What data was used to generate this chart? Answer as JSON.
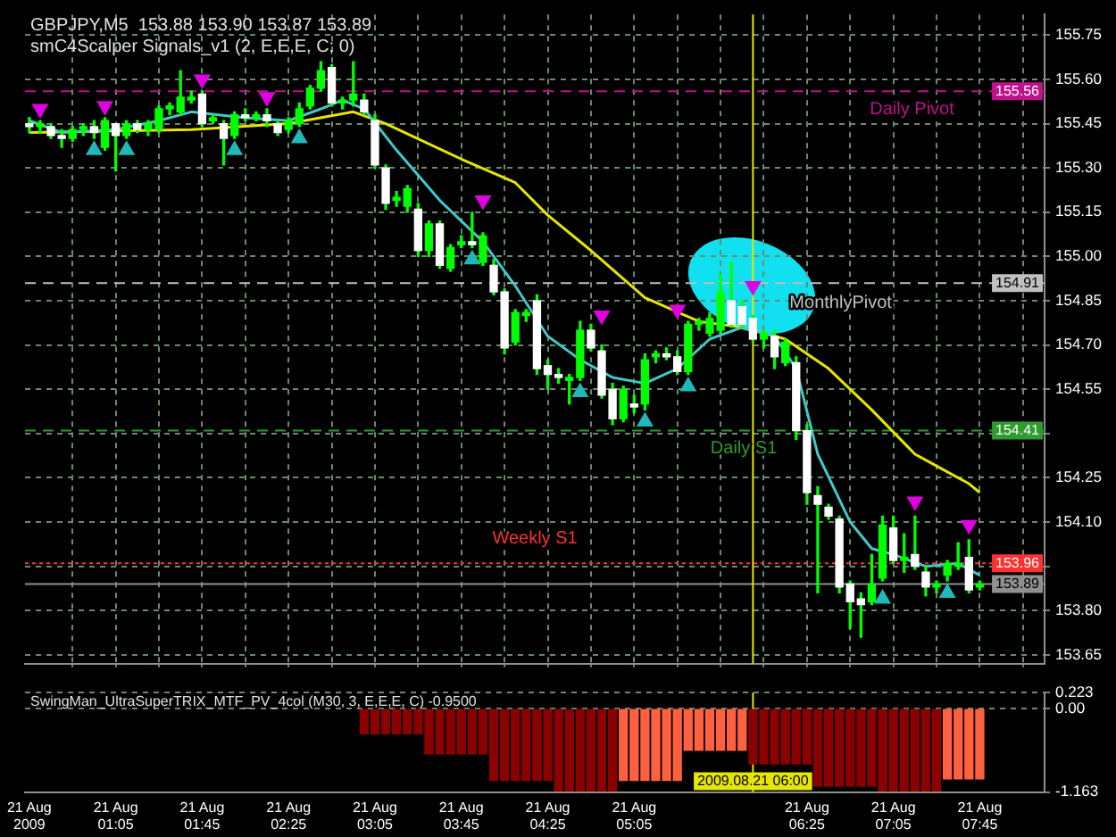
{
  "chart_data": [
    {
      "type": "candlestick",
      "title": "GBPJPY,M5  153.88 153.90 153.87 153.89",
      "subtitle": "smC4Scalper Signals_v1 (2, E,E,E, C; 0)",
      "series": [
        {
          "type": "line",
          "color": "#40c8c8",
          "x": [
            "2009-08-21T00:25",
            "2009-08-21T00:40",
            "2009-08-21T01:05",
            "2009-08-21T01:25",
            "2009-08-21T01:40",
            "2009-08-21T02:05",
            "2009-08-21T02:25",
            "2009-08-21T02:40",
            "2009-08-21T02:50",
            "2009-08-21T03:00",
            "2009-08-21T03:15",
            "2009-08-21T03:35",
            "2009-08-21T03:55",
            "2009-08-21T04:10",
            "2009-08-21T04:25",
            "2009-08-21T04:40",
            "2009-08-21T04:55",
            "2009-08-21T05:10",
            "2009-08-21T05:25",
            "2009-08-21T05:40",
            "2009-08-21T05:55",
            "2009-08-21T06:10",
            "2009-08-21T06:20",
            "2009-08-21T06:30",
            "2009-08-21T06:45",
            "2009-08-21T06:55",
            "2009-08-21T07:05",
            "2009-08-21T07:20",
            "2009-08-21T07:35",
            "2009-08-21T07:45"
          ],
          "values": [
            155.46,
            155.42,
            155.43,
            155.46,
            155.49,
            155.47,
            155.46,
            155.5,
            155.53,
            155.5,
            155.36,
            155.19,
            155.05,
            154.9,
            154.73,
            154.65,
            154.59,
            154.57,
            154.62,
            154.72,
            154.76,
            154.73,
            154.62,
            154.33,
            154.1,
            154.01,
            153.99,
            153.95,
            153.96,
            153.92
          ]
        },
        {
          "type": "line",
          "color": "#e6e600",
          "x": [
            "2009-08-21T00:25",
            "2009-08-21T01:40",
            "2009-08-21T02:25",
            "2009-08-21T02:55",
            "2009-08-21T03:10",
            "2009-08-21T03:45",
            "2009-08-21T04:10",
            "2009-08-21T04:25",
            "2009-08-21T04:45",
            "2009-08-21T05:10",
            "2009-08-21T05:35",
            "2009-08-21T05:55",
            "2009-08-21T06:15",
            "2009-08-21T06:35",
            "2009-08-21T06:55",
            "2009-08-21T07:15",
            "2009-08-21T07:30",
            "2009-08-21T07:40",
            "2009-08-21T07:45"
          ],
          "values": [
            155.42,
            155.43,
            155.45,
            155.49,
            155.45,
            155.33,
            155.25,
            155.14,
            155.02,
            154.86,
            154.78,
            154.76,
            154.72,
            154.62,
            154.48,
            154.33,
            154.27,
            154.23,
            154.2
          ]
        },
        {
          "type": "scatter",
          "color": "#e000e0",
          "marker": "triangle-down",
          "x": [
            "2009-08-21T00:30",
            "2009-08-21T01:00",
            "2009-08-21T01:45",
            "2009-08-21T02:15",
            "2009-08-21T03:55",
            "2009-08-21T04:50",
            "2009-08-21T05:25",
            "2009-08-21T06:00",
            "2009-08-21T07:15",
            "2009-08-21T07:40"
          ],
          "values": [
            155.5,
            155.51,
            155.6,
            155.54,
            155.19,
            154.8,
            154.82,
            154.9,
            154.17,
            154.09
          ]
        },
        {
          "type": "scatter",
          "color": "#20b8b8",
          "marker": "triangle",
          "x": [
            "2009-08-21T00:55",
            "2009-08-21T01:10",
            "2009-08-21T02:00",
            "2009-08-21T02:30",
            "2009-08-21T03:50",
            "2009-08-21T04:40",
            "2009-08-21T05:10",
            "2009-08-21T05:30",
            "2009-08-21T07:00",
            "2009-08-21T07:30"
          ],
          "values": [
            155.36,
            155.36,
            155.36,
            155.4,
            154.99,
            154.54,
            154.44,
            154.56,
            153.84,
            153.86
          ]
        },
        {
          "type": "candlestick",
          "color": "#00ff00",
          "colors": [
            "#ffffff",
            "#00ff00",
            "#ffffff",
            "#ffffff",
            "#00ff00",
            "#00ff00",
            "#ffffff",
            "#00ff00",
            "#ffffff",
            "#00ff00",
            "#ffffff",
            "#00ff00",
            "#00ff00",
            "#00ff00",
            "#00ff00",
            "#00ff00",
            "#ffffff",
            "#00ff00",
            "#ffffff",
            "#00ff00",
            "#ffffff",
            "#00ff00",
            "#ffffff",
            "#ffffff",
            "#00ff00",
            "#00ff00",
            "#00ff00",
            "#00ff00",
            "#ffffff",
            "#00ff00",
            "#00ff00",
            "#ffffff",
            "#ffffff",
            "#ffffff",
            "#00ff00",
            "#00ff00",
            "#ffffff",
            "#00ff00",
            "#ffffff",
            "#00ff00",
            "#00ff00",
            "#ffffff",
            "#00ff00",
            "#ffffff",
            "#ffffff",
            "#00ff00",
            "#00ff00",
            "#ffffff",
            "#ffffff",
            "#ffffff",
            "#00ff00",
            "#00ff00",
            "#ffffff",
            "#ffffff",
            "#ffffff",
            "#00ff00",
            "#ffffff",
            "#00ff00",
            "#00ff00",
            "#ffffff",
            "#ffffff",
            "#00ff00",
            "#00ff00",
            "#00ff00",
            "#00ff00",
            "#ffffff",
            "#ffffff",
            "#ffffff",
            "#00ff00",
            "#ffffff",
            "#00ff00",
            "#ffffff",
            "#ffffff",
            "#ffffff",
            "#ffffff",
            "#ffffff",
            "#ffffff",
            "#ffffff",
            "#00ff00",
            "#00ff00",
            "#ffffff",
            "#00ff00",
            "#ffffff",
            "#ffffff",
            "#00ff00",
            "#00ff00",
            "#00ff00",
            "#ffffff",
            "#00ff00"
          ],
          "x": [
            "2009-08-21T00:25",
            "2009-08-21T00:30",
            "2009-08-21T00:35",
            "2009-08-21T00:40",
            "2009-08-21T00:45",
            "2009-08-21T00:50",
            "2009-08-21T00:55",
            "2009-08-21T01:00",
            "2009-08-21T01:05",
            "2009-08-21T01:10",
            "2009-08-21T01:15",
            "2009-08-21T01:20",
            "2009-08-21T01:25",
            "2009-08-21T01:30",
            "2009-08-21T01:35",
            "2009-08-21T01:40",
            "2009-08-21T01:45",
            "2009-08-21T01:50",
            "2009-08-21T01:55",
            "2009-08-21T02:00",
            "2009-08-21T02:05",
            "2009-08-21T02:10",
            "2009-08-21T02:15",
            "2009-08-21T02:20",
            "2009-08-21T02:25",
            "2009-08-21T02:30",
            "2009-08-21T02:35",
            "2009-08-21T02:40",
            "2009-08-21T02:45",
            "2009-08-21T02:50",
            "2009-08-21T02:55",
            "2009-08-21T03:00",
            "2009-08-21T03:05",
            "2009-08-21T03:10",
            "2009-08-21T03:15",
            "2009-08-21T03:20",
            "2009-08-21T03:25",
            "2009-08-21T03:30",
            "2009-08-21T03:35",
            "2009-08-21T03:40",
            "2009-08-21T03:45",
            "2009-08-21T03:50",
            "2009-08-21T03:55",
            "2009-08-21T04:00",
            "2009-08-21T04:05",
            "2009-08-21T04:10",
            "2009-08-21T04:15",
            "2009-08-21T04:20",
            "2009-08-21T04:25",
            "2009-08-21T04:30",
            "2009-08-21T04:35",
            "2009-08-21T04:40",
            "2009-08-21T04:45",
            "2009-08-21T04:50",
            "2009-08-21T04:55",
            "2009-08-21T05:00",
            "2009-08-21T05:05",
            "2009-08-21T05:10",
            "2009-08-21T05:15",
            "2009-08-21T05:20",
            "2009-08-21T05:25",
            "2009-08-21T05:30",
            "2009-08-21T05:35",
            "2009-08-21T05:40",
            "2009-08-21T05:45",
            "2009-08-21T05:50",
            "2009-08-21T05:55",
            "2009-08-21T06:00",
            "2009-08-21T06:05",
            "2009-08-21T06:10",
            "2009-08-21T06:15",
            "2009-08-21T06:20",
            "2009-08-21T06:25",
            "2009-08-21T06:30",
            "2009-08-21T06:35",
            "2009-08-21T06:40",
            "2009-08-21T06:45",
            "2009-08-21T06:50",
            "2009-08-21T06:55",
            "2009-08-21T07:00",
            "2009-08-21T07:05",
            "2009-08-21T07:10",
            "2009-08-21T07:15",
            "2009-08-21T07:20",
            "2009-08-21T07:25",
            "2009-08-21T07:30",
            "2009-08-21T07:35",
            "2009-08-21T07:40",
            "2009-08-21T07:45"
          ],
          "ohlc": [
            [
              155.45,
              155.47,
              155.42,
              155.44
            ],
            [
              155.44,
              155.46,
              155.42,
              155.45
            ],
            [
              155.44,
              155.45,
              155.4,
              155.41
            ],
            [
              155.41,
              155.43,
              155.37,
              155.4
            ],
            [
              155.4,
              155.44,
              155.39,
              155.43
            ],
            [
              155.43,
              155.45,
              155.41,
              155.44
            ],
            [
              155.44,
              155.46,
              155.4,
              155.42
            ],
            [
              155.37,
              155.47,
              155.36,
              155.46
            ],
            [
              155.45,
              155.45,
              155.29,
              155.41
            ],
            [
              155.41,
              155.46,
              155.4,
              155.45
            ],
            [
              155.45,
              155.46,
              155.42,
              155.43
            ],
            [
              155.43,
              155.46,
              155.41,
              155.45
            ],
            [
              155.43,
              155.51,
              155.42,
              155.5
            ],
            [
              155.5,
              155.52,
              155.48,
              155.51
            ],
            [
              155.49,
              155.63,
              155.48,
              155.54
            ],
            [
              155.53,
              155.56,
              155.52,
              155.54
            ],
            [
              155.55,
              155.56,
              155.44,
              155.45
            ],
            [
              155.46,
              155.48,
              155.45,
              155.47
            ],
            [
              155.45,
              155.46,
              155.31,
              155.4
            ],
            [
              155.41,
              155.49,
              155.4,
              155.48
            ],
            [
              155.48,
              155.5,
              155.46,
              155.47
            ],
            [
              155.47,
              155.49,
              155.46,
              155.48
            ],
            [
              155.48,
              155.5,
              155.44,
              155.46
            ],
            [
              155.45,
              155.46,
              155.41,
              155.42
            ],
            [
              155.43,
              155.47,
              155.42,
              155.46
            ],
            [
              155.45,
              155.52,
              155.44,
              155.5
            ],
            [
              155.51,
              155.58,
              155.5,
              155.57
            ],
            [
              155.57,
              155.66,
              155.56,
              155.63
            ],
            [
              155.64,
              155.65,
              155.51,
              155.52
            ],
            [
              155.52,
              155.54,
              155.5,
              155.53
            ],
            [
              155.53,
              155.66,
              155.51,
              155.55
            ],
            [
              155.53,
              155.55,
              155.48,
              155.49
            ],
            [
              155.46,
              155.48,
              155.3,
              155.31
            ],
            [
              155.3,
              155.31,
              155.16,
              155.18
            ],
            [
              155.19,
              155.22,
              155.17,
              155.2
            ],
            [
              155.17,
              155.24,
              155.15,
              155.23
            ],
            [
              155.16,
              155.18,
              155,
              155.02
            ],
            [
              155.02,
              155.12,
              155,
              155.11
            ],
            [
              155.11,
              155.12,
              154.96,
              154.97
            ],
            [
              154.96,
              155.04,
              154.95,
              155.03
            ],
            [
              155.04,
              155.07,
              155.03,
              155.05
            ],
            [
              155.05,
              155.15,
              155.03,
              155.04
            ],
            [
              154.98,
              155.08,
              154.97,
              155.07
            ],
            [
              154.97,
              154.99,
              154.87,
              154.88
            ],
            [
              154.88,
              154.89,
              154.67,
              154.69
            ],
            [
              154.71,
              154.82,
              154.7,
              154.81
            ],
            [
              154.8,
              154.82,
              154.78,
              154.81
            ],
            [
              154.85,
              154.87,
              154.6,
              154.62
            ],
            [
              154.63,
              154.65,
              154.55,
              154.6
            ],
            [
              154.6,
              154.62,
              154.57,
              154.59
            ],
            [
              154.58,
              154.6,
              154.5,
              154.59
            ],
            [
              154.59,
              154.78,
              154.58,
              154.75
            ],
            [
              154.75,
              154.77,
              154.68,
              154.69
            ],
            [
              154.68,
              154.7,
              154.52,
              154.53
            ],
            [
              154.55,
              154.57,
              154.43,
              154.45
            ],
            [
              154.45,
              154.56,
              154.44,
              154.55
            ],
            [
              154.5,
              154.53,
              154.47,
              154.49
            ],
            [
              154.5,
              154.67,
              154.48,
              154.65
            ],
            [
              154.66,
              154.68,
              154.64,
              154.67
            ],
            [
              154.67,
              154.69,
              154.65,
              154.66
            ],
            [
              154.66,
              154.68,
              154.6,
              154.61
            ],
            [
              154.61,
              154.78,
              154.6,
              154.77
            ],
            [
              154.77,
              154.79,
              154.75,
              154.78
            ],
            [
              154.74,
              154.81,
              154.73,
              154.79
            ],
            [
              154.75,
              154.94,
              154.74,
              154.88
            ],
            [
              154.85,
              154.98,
              154.76,
              154.77
            ],
            [
              154.83,
              154.85,
              154.76,
              154.77
            ],
            [
              154.79,
              154.8,
              154.71,
              154.72
            ],
            [
              154.72,
              154.75,
              154.69,
              154.74
            ],
            [
              154.73,
              154.75,
              154.62,
              154.66
            ],
            [
              154.64,
              154.72,
              154.63,
              154.71
            ],
            [
              154.64,
              154.66,
              154.38,
              154.41
            ],
            [
              154.41,
              154.43,
              154.16,
              154.2
            ],
            [
              154.19,
              154.22,
              153.86,
              154.16
            ],
            [
              154.15,
              154.16,
              154.11,
              154.12
            ],
            [
              154.11,
              154.12,
              153.86,
              153.88
            ],
            [
              153.89,
              153.9,
              153.74,
              153.83
            ],
            [
              153.84,
              153.86,
              153.71,
              153.82
            ],
            [
              153.83,
              153.99,
              153.82,
              153.89
            ],
            [
              153.91,
              154.12,
              153.9,
              154.09
            ],
            [
              154.08,
              154.12,
              153.96,
              153.97
            ],
            [
              153.97,
              154.06,
              153.93,
              153.98
            ],
            [
              153.99,
              154.12,
              153.94,
              153.95
            ],
            [
              153.93,
              153.95,
              153.85,
              153.88
            ],
            [
              153.88,
              153.9,
              153.86,
              153.89
            ],
            [
              153.92,
              153.97,
              153.9,
              153.96
            ],
            [
              153.95,
              154.03,
              153.94,
              153.96
            ],
            [
              153.98,
              154.04,
              153.86,
              153.87
            ],
            [
              153.88,
              153.9,
              153.87,
              153.89
            ]
          ]
        }
      ],
      "xlim": [
        "2009-08-21T00:23",
        "2009-08-21T08:15"
      ],
      "ylim": [
        153.62,
        155.82
      ],
      "xticks": [
        {
          "value": "2009-08-21T00:45",
          "label": null
        },
        {
          "value": "2009-08-21T01:05",
          "label": null
        },
        {
          "value": "2009-08-21T01:25",
          "label": null
        },
        {
          "value": "2009-08-21T01:45",
          "label": null
        },
        {
          "value": "2009-08-21T02:05",
          "label": null
        },
        {
          "value": "2009-08-21T02:25",
          "label": null
        },
        {
          "value": "2009-08-21T02:45",
          "label": null
        },
        {
          "value": "2009-08-21T03:05",
          "label": null
        },
        {
          "value": "2009-08-21T03:25",
          "label": null
        },
        {
          "value": "2009-08-21T03:45",
          "label": null
        },
        {
          "value": "2009-08-21T04:05",
          "label": null
        },
        {
          "value": "2009-08-21T04:25",
          "label": null
        },
        {
          "value": "2009-08-21T04:45",
          "label": null
        },
        {
          "value": "2009-08-21T05:05",
          "label": null
        },
        {
          "value": "2009-08-21T05:25",
          "label": null
        },
        {
          "value": "2009-08-21T05:45",
          "label": null
        },
        {
          "value": "2009-08-21T06:05",
          "label": null
        },
        {
          "value": "2009-08-21T06:25",
          "label": null
        },
        {
          "value": "2009-08-21T06:45",
          "label": null
        },
        {
          "value": "2009-08-21T07:05",
          "label": null
        },
        {
          "value": "2009-08-21T07:25",
          "label": null
        },
        {
          "value": "2009-08-21T07:45",
          "label": null
        },
        {
          "value": "2009-08-21T08:05",
          "label": null
        }
      ],
      "yticks": [
        {
          "value": 155.75,
          "label": "155.75"
        },
        {
          "value": 155.6,
          "label": "155.60"
        },
        {
          "value": 155.45,
          "label": "155.45"
        },
        {
          "value": 155.3,
          "label": "155.30"
        },
        {
          "value": 155.15,
          "label": "155.15"
        },
        {
          "value": 155,
          "label": "155.00"
        },
        {
          "value": 154.85,
          "label": "154.85"
        },
        {
          "value": 154.7,
          "label": "154.70"
        },
        {
          "value": 154.55,
          "label": "154.55"
        },
        {
          "value": 154.4,
          "label": null
        },
        {
          "value": 154.25,
          "label": "154.25"
        },
        {
          "value": 154.1,
          "label": "154.10"
        },
        {
          "value": 153.95,
          "label": null
        },
        {
          "value": 153.8,
          "label": "153.80"
        },
        {
          "value": 153.65,
          "label": "153.65"
        }
      ],
      "y2lim": [
        153.62,
        155.82
      ],
      "y2ticks": [
        {
          "value": 155.56,
          "label": "155.56"
        },
        {
          "value": 154.91,
          "label": "154.91"
        },
        {
          "value": 154.41,
          "label": "154.41"
        },
        {
          "value": 153.96,
          "label": "153.96"
        },
        {
          "value": 153.89,
          "label": "153.89"
        }
      ],
      "tick_labels": "y",
      "grid": true,
      "ref_lines": [
        {
          "axis": "y",
          "value": 155.56,
          "label": "Daily Pivot",
          "color": "#c0108a",
          "line_style": "dashed"
        },
        {
          "axis": "y",
          "value": 154.91,
          "label": "MonthlyPivot",
          "color": "#c0c0c0",
          "line_style": "dashed"
        },
        {
          "axis": "y",
          "value": 154.41,
          "label": "Daily S1",
          "color": "#2e9b2e",
          "line_style": "dashed"
        },
        {
          "axis": "y",
          "value": 153.96,
          "label": "Weekly S1",
          "color": "#ff3030",
          "line_style": "dotted"
        },
        {
          "axis": "y",
          "value": 153.89,
          "color": "#909090",
          "line_style": "solid"
        },
        {
          "axis": "x",
          "value": "2009-08-21T06:00",
          "color": "#e6e600",
          "line_style": "solid"
        }
      ]
    },
    {
      "type": "bar",
      "title": "SwingMan_UltraSuperTRIX_MTF_PV_4col (M30, 3, E,E,E, C) -0.9500",
      "x": [
        "2009-08-21T03:00",
        "2009-08-21T03:05",
        "2009-08-21T03:10",
        "2009-08-21T03:15",
        "2009-08-21T03:20",
        "2009-08-21T03:25",
        "2009-08-21T03:30",
        "2009-08-21T03:35",
        "2009-08-21T03:40",
        "2009-08-21T03:45",
        "2009-08-21T03:50",
        "2009-08-21T03:55",
        "2009-08-21T04:00",
        "2009-08-21T04:05",
        "2009-08-21T04:10",
        "2009-08-21T04:15",
        "2009-08-21T04:20",
        "2009-08-21T04:25",
        "2009-08-21T04:30",
        "2009-08-21T04:35",
        "2009-08-21T04:40",
        "2009-08-21T04:45",
        "2009-08-21T04:50",
        "2009-08-21T04:55",
        "2009-08-21T05:00",
        "2009-08-21T05:05",
        "2009-08-21T05:10",
        "2009-08-21T05:15",
        "2009-08-21T05:20",
        "2009-08-21T05:25",
        "2009-08-21T05:30",
        "2009-08-21T05:35",
        "2009-08-21T05:40",
        "2009-08-21T05:45",
        "2009-08-21T05:50",
        "2009-08-21T05:55",
        "2009-08-21T06:00",
        "2009-08-21T06:05",
        "2009-08-21T06:10",
        "2009-08-21T06:15",
        "2009-08-21T06:20",
        "2009-08-21T06:25",
        "2009-08-21T06:30",
        "2009-08-21T06:35",
        "2009-08-21T06:40",
        "2009-08-21T06:45",
        "2009-08-21T06:50",
        "2009-08-21T06:55",
        "2009-08-21T07:00",
        "2009-08-21T07:05",
        "2009-08-21T07:10",
        "2009-08-21T07:15",
        "2009-08-21T07:20",
        "2009-08-21T07:25",
        "2009-08-21T07:30",
        "2009-08-21T07:35",
        "2009-08-21T07:40",
        "2009-08-21T07:45"
      ],
      "values": [
        -0.35,
        -0.35,
        -0.35,
        -0.35,
        -0.35,
        -0.35,
        -0.63,
        -0.63,
        -0.63,
        -0.63,
        -0.63,
        -0.63,
        -1,
        -1,
        -1,
        -1,
        -1,
        -1,
        -1.15,
        -1.15,
        -1.15,
        -1.15,
        -1.15,
        -1.15,
        -1,
        -1,
        -1,
        -1,
        -1,
        -1,
        -0.58,
        -0.58,
        -0.58,
        -0.58,
        -0.58,
        -0.58,
        -0.77,
        -0.77,
        -0.77,
        -0.77,
        -0.77,
        -0.77,
        -1.08,
        -1.08,
        -1.08,
        -1.08,
        -1.08,
        -1.08,
        -1.15,
        -1.15,
        -1.15,
        -1.15,
        -1.15,
        -1.15,
        -0.98,
        -0.98,
        -0.98,
        -0.98
      ],
      "colors": [
        "#8b0000",
        "#8b0000",
        "#8b0000",
        "#8b0000",
        "#8b0000",
        "#8b0000",
        "#8b0000",
        "#8b0000",
        "#8b0000",
        "#8b0000",
        "#8b0000",
        "#8b0000",
        "#8b0000",
        "#8b0000",
        "#8b0000",
        "#8b0000",
        "#8b0000",
        "#8b0000",
        "#8b0000",
        "#8b0000",
        "#8b0000",
        "#8b0000",
        "#8b0000",
        "#8b0000",
        "#ff6040",
        "#ff6040",
        "#ff6040",
        "#ff6040",
        "#ff6040",
        "#ff6040",
        "#ff6040",
        "#ff6040",
        "#ff6040",
        "#ff6040",
        "#ff6040",
        "#ff6040",
        "#8b0000",
        "#8b0000",
        "#8b0000",
        "#8b0000",
        "#8b0000",
        "#8b0000",
        "#8b0000",
        "#8b0000",
        "#8b0000",
        "#8b0000",
        "#8b0000",
        "#8b0000",
        "#8b0000",
        "#8b0000",
        "#8b0000",
        "#8b0000",
        "#8b0000",
        "#8b0000",
        "#ff6040",
        "#ff6040",
        "#ff6040",
        "#ff6040"
      ],
      "xlim": [
        "2009-08-21T00:23",
        "2009-08-21T08:15"
      ],
      "ylim": [
        -1.163,
        0.223
      ],
      "xticks": [
        {
          "value": "2009-08-21T00:25",
          "label": "21 Aug 2009"
        },
        {
          "value": "2009-08-21T01:05",
          "label": "21 Aug 01:05"
        },
        {
          "value": "2009-08-21T01:45",
          "label": "21 Aug 01:45"
        },
        {
          "value": "2009-08-21T02:25",
          "label": "21 Aug 02:25"
        },
        {
          "value": "2009-08-21T03:05",
          "label": "21 Aug 03:05"
        },
        {
          "value": "2009-08-21T03:45",
          "label": "21 Aug 03:45"
        },
        {
          "value": "2009-08-21T04:25",
          "label": "21 Aug 04:25"
        },
        {
          "value": "2009-08-21T05:05",
          "label": "21 Aug 05:05"
        },
        {
          "value": "2009-08-21T06:25",
          "label": "21 Aug 06:25"
        },
        {
          "value": "2009-08-21T07:05",
          "label": "21 Aug 07:05"
        },
        {
          "value": "2009-08-21T07:45",
          "label": "21 Aug 07:45"
        }
      ],
      "yticks": [
        {
          "value": 0.223,
          "label": "0.223"
        },
        {
          "value": 0,
          "label": "0.00"
        },
        {
          "value": -1.163,
          "label": "-1.163"
        }
      ],
      "grid": "y",
      "ref_lines": [
        {
          "axis": "x",
          "value": "2009-08-21T06:00",
          "label": "2009.08.21 06:00",
          "color": "#e6e600",
          "line_style": "solid"
        }
      ]
    }
  ]
}
